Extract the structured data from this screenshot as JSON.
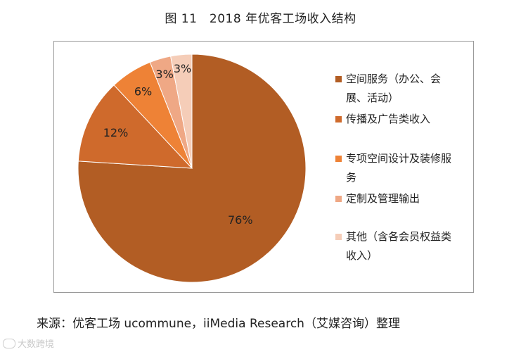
{
  "title": "图 11　2018 年优客工场收入结构",
  "source": "来源：优客工场 ucommune，iiMedia Research（艾媒咨询）整理",
  "watermark": "大数跨境",
  "chart_data": {
    "type": "pie",
    "start_angle_deg": 0,
    "direction": "clockwise",
    "slices": [
      {
        "label": "空间服务（办公、会展、活动）",
        "value": 76,
        "display": "76%",
        "color": "#b25d24"
      },
      {
        "label": "传播及广告类收入",
        "value": 12,
        "display": "12%",
        "color": "#cf6a2c"
      },
      {
        "label": "专项空间设计及装修服务",
        "value": 6,
        "display": "6%",
        "color": "#ee8236"
      },
      {
        "label": "定制及管理输出",
        "value": 3,
        "display": "3%",
        "color": "#efa885"
      },
      {
        "label": "其他（含各会员权益类收入）",
        "value": 3,
        "display": "3%",
        "color": "#f5cdb8"
      }
    ],
    "legend_position": "right"
  }
}
